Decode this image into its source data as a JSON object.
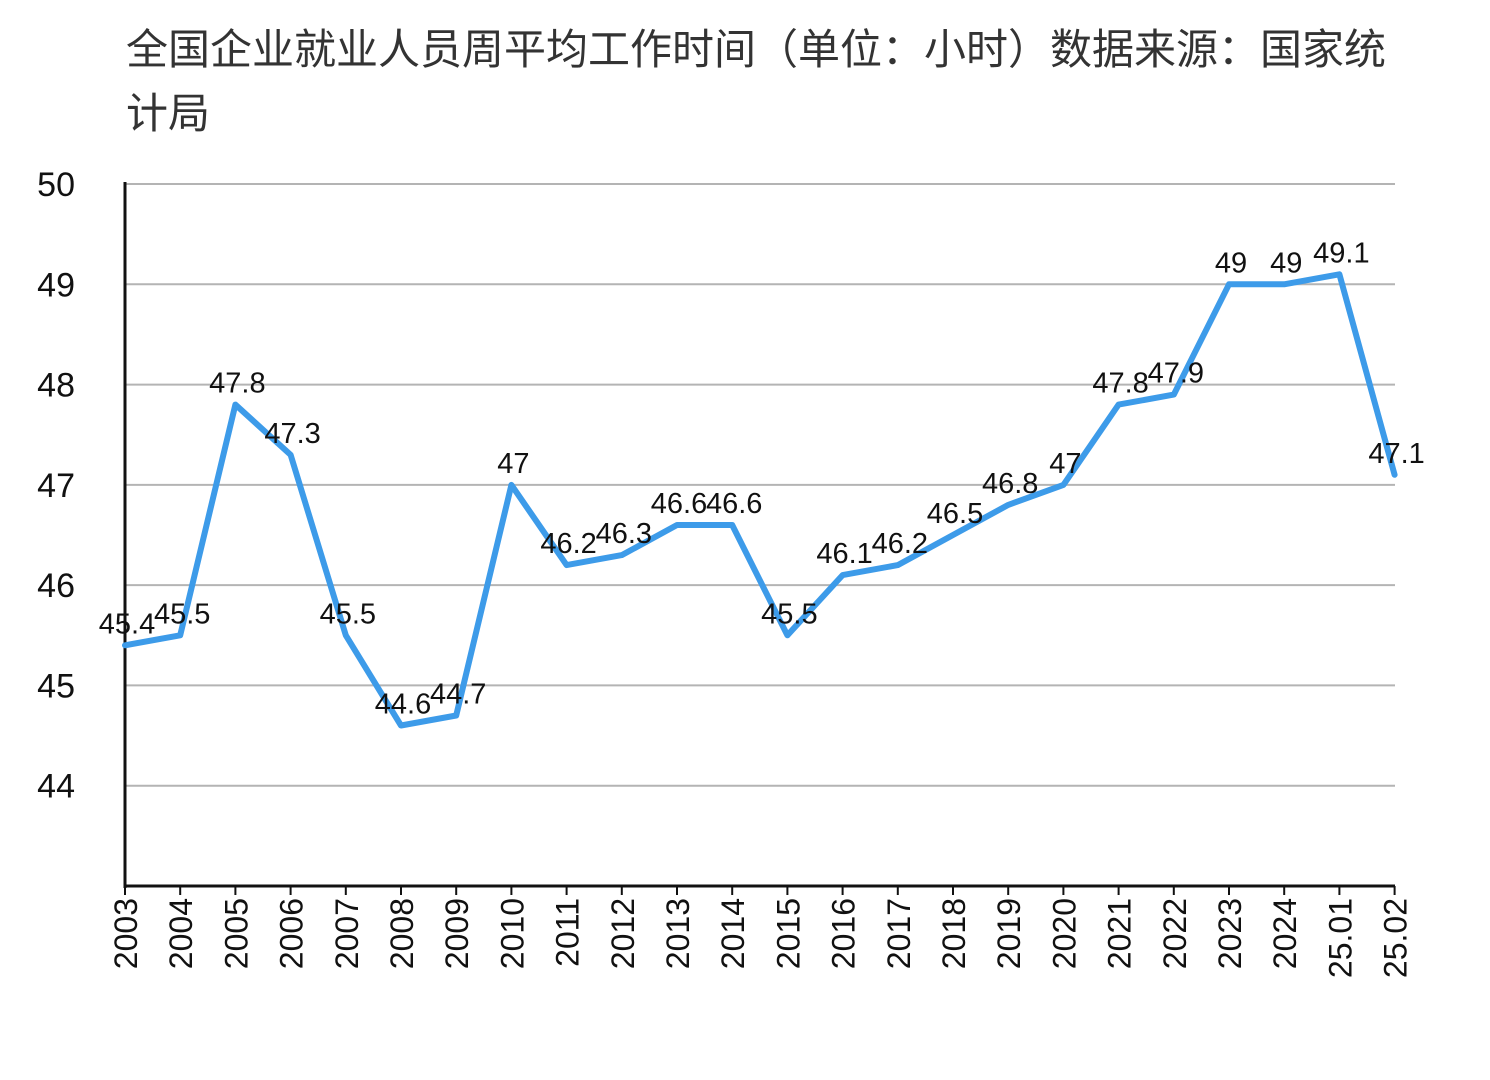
{
  "chart_data": {
    "type": "line",
    "title": "全国企业就业人员周平均工作时间（单位：小时）数据来源：国家统计局",
    "xlabel": "",
    "ylabel": "",
    "categories": [
      "2003",
      "2004",
      "2005",
      "2006",
      "2007",
      "2008",
      "2009",
      "2010",
      "2011",
      "2012",
      "2013",
      "2014",
      "2015",
      "2016",
      "2017",
      "2018",
      "2019",
      "2020",
      "2021",
      "2022",
      "2023",
      "2024",
      "25.01",
      "25.02"
    ],
    "series": [
      {
        "values": [
          45.4,
          45.5,
          47.8,
          47.3,
          45.5,
          44.6,
          44.7,
          47,
          46.2,
          46.3,
          46.6,
          46.6,
          45.5,
          46.1,
          46.2,
          46.5,
          46.8,
          47,
          47.8,
          47.9,
          49,
          49,
          49.1,
          47.1
        ],
        "color": "#3d9be9"
      }
    ],
    "ylim": [
      43,
      50
    ],
    "yticks": [
      44,
      45,
      46,
      47,
      48,
      49,
      50
    ],
    "grid": true,
    "legend": "none"
  }
}
